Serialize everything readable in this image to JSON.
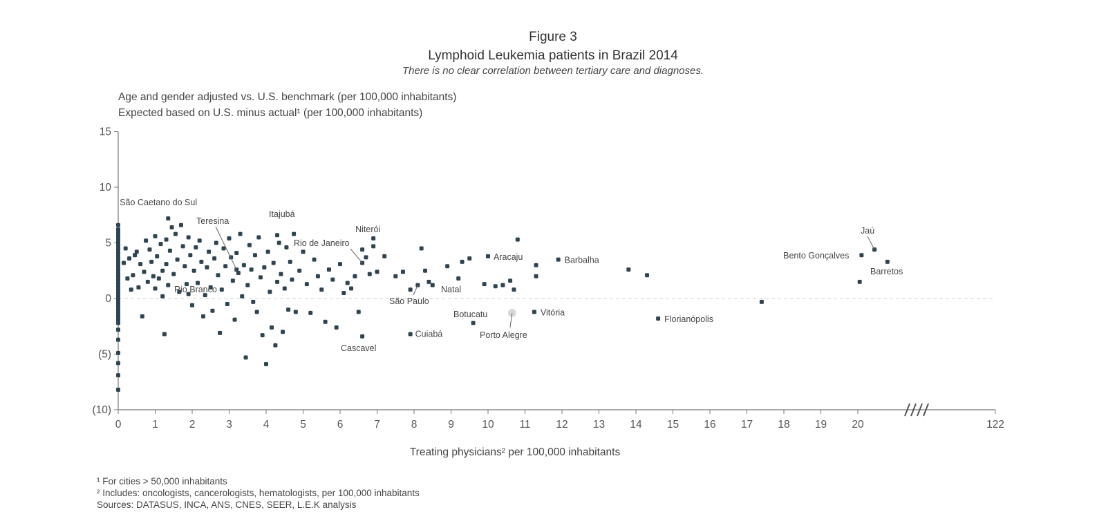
{
  "figure": {
    "number": "Figure 3",
    "title": "Lymphoid Leukemia patients in Brazil 2014",
    "subtitle": "There is no clear correlation between tertiary care and diagnoses.",
    "y_label_1": "Age and gender adjusted vs. U.S. benchmark (per 100,000 inhabitants)",
    "y_label_2": "Expected based on U.S. minus actual¹ (per 100,000 inhabitants)",
    "x_label": "Treating physicians² per 100,000 inhabitants",
    "footnote_1": "¹ For cities > 50,000 inhabitants",
    "footnote_2": "² Includes: oncologists, cancerologists, hematologists, per 100,000 inhabitants",
    "sources": "Sources: DATASUS, INCA, ANS, CNES, SEER, L.E.K analysis"
  },
  "chart_data": {
    "type": "scatter",
    "xlim": [
      0,
      122
    ],
    "ylim": [
      -10,
      15
    ],
    "axis_break": "between 20 and 122",
    "zero_line": "dashed",
    "grid": false,
    "x_ticks": [
      "0",
      "1",
      "2",
      "3",
      "4",
      "5",
      "6",
      "7",
      "8",
      "9",
      "10",
      "11",
      "12",
      "13",
      "14",
      "15",
      "16",
      "17",
      "18",
      "19",
      "20",
      "122"
    ],
    "y_ticks": [
      "15",
      "10",
      "5",
      "0",
      "(5)",
      "(10)"
    ],
    "point_color": "#2e4551",
    "highlight_color": "#d9d9d9",
    "labeled_points": [
      {
        "name": "São Caetano do Sul",
        "x": 1.35,
        "y": 7.2
      },
      {
        "name": "Teresina",
        "x": 3.2,
        "y": 2.6
      },
      {
        "name": "Itajubá",
        "x": 4.3,
        "y": 5.7
      },
      {
        "name": "Rio de Janeiro",
        "x": 6.6,
        "y": 3.2
      },
      {
        "name": "Niterói",
        "x": 6.9,
        "y": 5.4
      },
      {
        "name": "Rio Branco",
        "x": 1.9,
        "y": 0.4
      },
      {
        "name": "São Paulo",
        "x": 8.1,
        "y": 1.2
      },
      {
        "name": "Natal",
        "x": 8.4,
        "y": 1.5
      },
      {
        "name": "Cascavel",
        "x": 6.6,
        "y": -3.4
      },
      {
        "name": "Cuiabá",
        "x": 7.9,
        "y": -3.2
      },
      {
        "name": "Botucatu",
        "x": 9.6,
        "y": -2.2
      },
      {
        "name": "Porto Alegre",
        "x": 10.65,
        "y": -1.3,
        "highlight": true
      },
      {
        "name": "Vitória",
        "x": 11.25,
        "y": -1.2
      },
      {
        "name": "Aracaju",
        "x": 10.0,
        "y": 3.8
      },
      {
        "name": "Barbalha",
        "x": 11.9,
        "y": 3.5
      },
      {
        "name": "Florianópolis",
        "x": 14.6,
        "y": -1.8
      },
      {
        "name": "Jaú",
        "x": 20.45,
        "y": 4.4
      },
      {
        "name": "Bento Gonçalves",
        "x": 20.1,
        "y": 3.9
      },
      {
        "name": "Barretos",
        "x": 20.05,
        "y": 1.5
      }
    ],
    "points": [
      [
        0,
        6.6
      ],
      [
        0,
        6.2
      ],
      [
        0,
        5.9
      ],
      [
        0,
        5.6
      ],
      [
        0,
        5.3
      ],
      [
        0,
        5.0
      ],
      [
        0,
        4.7
      ],
      [
        0,
        4.4
      ],
      [
        0,
        4.1
      ],
      [
        0,
        3.8
      ],
      [
        0,
        3.5
      ],
      [
        0,
        3.2
      ],
      [
        0,
        2.9
      ],
      [
        0,
        2.6
      ],
      [
        0,
        2.3
      ],
      [
        0,
        2.0
      ],
      [
        0,
        1.7
      ],
      [
        0,
        1.4
      ],
      [
        0,
        1.1
      ],
      [
        0,
        0.8
      ],
      [
        0,
        0.5
      ],
      [
        0,
        0.2
      ],
      [
        0,
        -0.1
      ],
      [
        0,
        -0.4
      ],
      [
        0,
        -0.7
      ],
      [
        0,
        -1.0
      ],
      [
        0,
        -1.3
      ],
      [
        0,
        -1.6
      ],
      [
        0,
        -1.9
      ],
      [
        0,
        -2.2
      ],
      [
        0,
        -2.8
      ],
      [
        0,
        -3.7
      ],
      [
        0,
        -4.9
      ],
      [
        0,
        -5.8
      ],
      [
        0,
        -6.9
      ],
      [
        0,
        -8.2
      ],
      [
        0.15,
        3.2
      ],
      [
        0.2,
        4.5
      ],
      [
        0.25,
        1.8
      ],
      [
        0.3,
        3.6
      ],
      [
        0.35,
        0.8
      ],
      [
        0.4,
        2.1
      ],
      [
        0.45,
        3.9
      ],
      [
        0.5,
        4.2
      ],
      [
        0.55,
        1.0
      ],
      [
        0.6,
        3.1
      ],
      [
        0.65,
        -1.6
      ],
      [
        0.7,
        2.4
      ],
      [
        0.75,
        5.2
      ],
      [
        0.8,
        1.5
      ],
      [
        0.85,
        4.4
      ],
      [
        0.9,
        3.3
      ],
      [
        0.95,
        2.0
      ],
      [
        1.0,
        5.6
      ],
      [
        1.0,
        0.9
      ],
      [
        1.05,
        3.8
      ],
      [
        1.1,
        1.8
      ],
      [
        1.15,
        4.9
      ],
      [
        1.2,
        2.5
      ],
      [
        1.2,
        0.2
      ],
      [
        1.25,
        -3.2
      ],
      [
        1.3,
        5.3
      ],
      [
        1.3,
        3.1
      ],
      [
        1.35,
        1.2
      ],
      [
        1.4,
        4.3
      ],
      [
        1.45,
        6.4
      ],
      [
        1.5,
        2.2
      ],
      [
        1.55,
        5.8
      ],
      [
        1.6,
        3.5
      ],
      [
        1.65,
        0.6
      ],
      [
        1.7,
        6.6
      ],
      [
        1.75,
        4.7
      ],
      [
        1.8,
        2.9
      ],
      [
        1.85,
        1.3
      ],
      [
        1.9,
        5.5
      ],
      [
        1.95,
        3.9
      ],
      [
        2.0,
        -0.6
      ],
      [
        2.05,
        2.5
      ],
      [
        2.1,
        4.6
      ],
      [
        2.15,
        1.4
      ],
      [
        2.2,
        5.2
      ],
      [
        2.25,
        3.3
      ],
      [
        2.3,
        -1.6
      ],
      [
        2.35,
        0.3
      ],
      [
        2.4,
        2.8
      ],
      [
        2.45,
        4.2
      ],
      [
        2.5,
        1.0
      ],
      [
        2.55,
        -1.1
      ],
      [
        2.6,
        3.6
      ],
      [
        2.65,
        5.0
      ],
      [
        2.7,
        2.1
      ],
      [
        2.75,
        -3.1
      ],
      [
        2.8,
        0.8
      ],
      [
        2.85,
        4.5
      ],
      [
        2.9,
        2.9
      ],
      [
        2.95,
        -0.5
      ],
      [
        3.0,
        5.4
      ],
      [
        3.05,
        3.7
      ],
      [
        3.1,
        1.6
      ],
      [
        3.15,
        -1.9
      ],
      [
        3.2,
        4.1
      ],
      [
        3.25,
        2.3
      ],
      [
        3.3,
        5.8
      ],
      [
        3.35,
        0.2
      ],
      [
        3.4,
        3.0
      ],
      [
        3.45,
        -5.3
      ],
      [
        3.5,
        1.2
      ],
      [
        3.55,
        4.8
      ],
      [
        3.6,
        2.6
      ],
      [
        3.65,
        -0.3
      ],
      [
        3.7,
        3.9
      ],
      [
        3.75,
        -1.2
      ],
      [
        3.8,
        5.5
      ],
      [
        3.85,
        1.9
      ],
      [
        3.9,
        -3.3
      ],
      [
        3.95,
        2.8
      ],
      [
        4.0,
        -5.9
      ],
      [
        4.05,
        4.2
      ],
      [
        4.1,
        0.6
      ],
      [
        4.15,
        -2.6
      ],
      [
        4.2,
        3.2
      ],
      [
        4.25,
        -4.2
      ],
      [
        4.3,
        1.5
      ],
      [
        4.35,
        5.0
      ],
      [
        4.4,
        2.2
      ],
      [
        4.45,
        -3.0
      ],
      [
        4.5,
        0.9
      ],
      [
        4.55,
        4.6
      ],
      [
        4.6,
        -1.0
      ],
      [
        4.65,
        3.3
      ],
      [
        4.7,
        1.7
      ],
      [
        4.75,
        5.8
      ],
      [
        4.8,
        -1.2
      ],
      [
        4.9,
        2.5
      ],
      [
        5.0,
        4.2
      ],
      [
        5.1,
        1.3
      ],
      [
        5.2,
        -1.3
      ],
      [
        5.3,
        3.5
      ],
      [
        5.4,
        2.0
      ],
      [
        5.5,
        0.8
      ],
      [
        5.6,
        -2.1
      ],
      [
        5.7,
        2.6
      ],
      [
        5.8,
        1.7
      ],
      [
        5.9,
        -2.6
      ],
      [
        6.0,
        3.1
      ],
      [
        6.1,
        0.5
      ],
      [
        6.2,
        1.4
      ],
      [
        6.3,
        0.9
      ],
      [
        6.4,
        2.0
      ],
      [
        6.5,
        -1.2
      ],
      [
        6.6,
        4.4
      ],
      [
        6.7,
        3.7
      ],
      [
        6.8,
        2.2
      ],
      [
        6.9,
        4.7
      ],
      [
        7.0,
        2.4
      ],
      [
        7.2,
        3.8
      ],
      [
        7.5,
        2.0
      ],
      [
        7.7,
        2.4
      ],
      [
        7.9,
        0.8
      ],
      [
        8.2,
        4.5
      ],
      [
        8.3,
        2.5
      ],
      [
        8.5,
        1.2
      ],
      [
        8.9,
        2.9
      ],
      [
        9.2,
        1.8
      ],
      [
        9.3,
        3.3
      ],
      [
        9.5,
        3.6
      ],
      [
        9.9,
        1.3
      ],
      [
        10.2,
        1.1
      ],
      [
        10.4,
        1.2
      ],
      [
        10.6,
        1.6
      ],
      [
        10.7,
        0.8
      ],
      [
        10.8,
        5.3
      ],
      [
        11.3,
        3.0
      ],
      [
        11.3,
        2.0
      ],
      [
        13.8,
        2.6
      ],
      [
        14.3,
        2.1
      ],
      [
        17.4,
        -0.3
      ],
      [
        20.8,
        3.3
      ]
    ]
  }
}
